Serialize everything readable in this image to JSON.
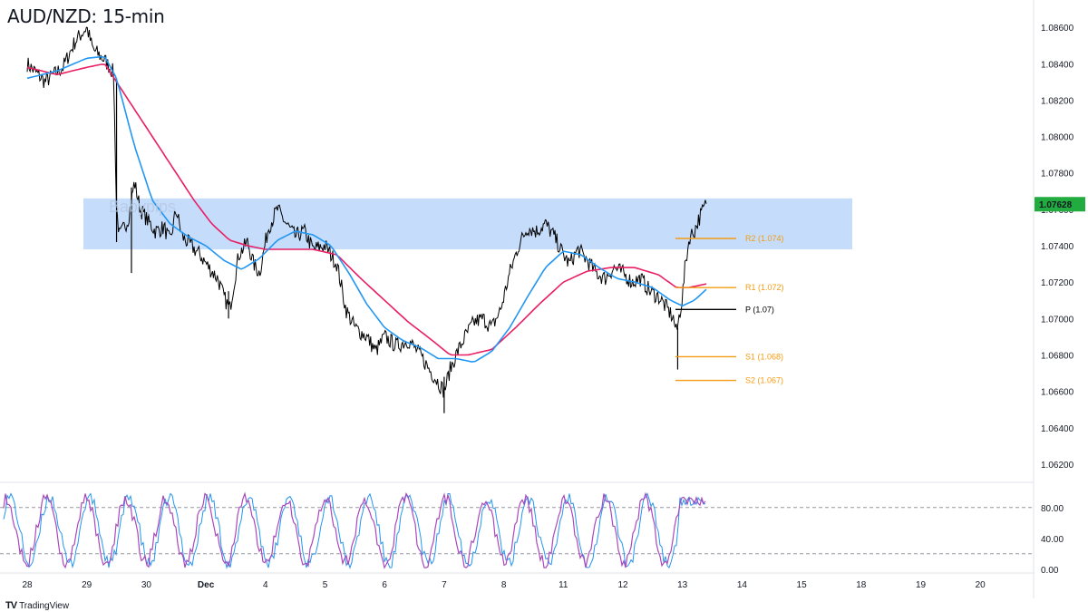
{
  "title": "AUD/NZD: 15-min",
  "brand": {
    "logo": "TV",
    "name": "TradingView"
  },
  "watermark": "Babypips",
  "colors": {
    "price": "#000000",
    "ma_fast": "#2196f3",
    "ma_slow": "#e91e63",
    "zone": "#bbd7fa",
    "pivot_orange": "#f39c12",
    "pivot_black": "#000000",
    "stoch_k": "#2196f3",
    "stoch_d": "#ab47bc",
    "last_price_bg": "#22ab3f"
  },
  "chart_data": [
    {
      "type": "line",
      "name": "main",
      "x_labels": [
        "28",
        "29",
        "30",
        "Dec",
        "4",
        "5",
        "6",
        "7",
        "8",
        "11",
        "12",
        "13",
        "14",
        "15",
        "18",
        "19",
        "20"
      ],
      "ylim": [
        1.061,
        1.0875
      ],
      "y_ticks": [
        "1.08600",
        "1.08400",
        "1.08200",
        "1.08000",
        "1.07800",
        "1.07600",
        "1.07400",
        "1.07200",
        "1.07000",
        "1.06800",
        "1.06600",
        "1.06400",
        "1.06200"
      ],
      "last_price": "1.07628",
      "zone": {
        "top": 1.0766,
        "bottom": 1.0738
      },
      "pivot_levels": [
        {
          "label": "R2 (1.074)",
          "value": 1.0744,
          "color": "#f39c12"
        },
        {
          "label": "R1 (1.072)",
          "value": 1.0717,
          "color": "#f39c12"
        },
        {
          "label": "P (1.07)",
          "value": 1.0705,
          "color": "#000000"
        },
        {
          "label": "S1 (1.068)",
          "value": 1.0679,
          "color": "#f39c12"
        },
        {
          "label": "S2 (1.067)",
          "value": 1.0666,
          "color": "#f39c12"
        }
      ],
      "price_path": [
        [
          0,
          1.084
        ],
        [
          0.3,
          1.083
        ],
        [
          0.6,
          1.0838
        ],
        [
          0.8,
          1.0852
        ],
        [
          1.0,
          1.086
        ],
        [
          1.1,
          1.0848
        ],
        [
          1.3,
          1.0842
        ],
        [
          1.45,
          1.0835
        ],
        [
          1.5,
          1.076
        ],
        [
          1.55,
          1.0745
        ],
        [
          1.7,
          1.0755
        ],
        [
          1.8,
          1.0775
        ],
        [
          1.9,
          1.076
        ],
        [
          2.0,
          1.0755
        ],
        [
          2.15,
          1.0748
        ],
        [
          2.3,
          1.075
        ],
        [
          2.4,
          1.0742
        ],
        [
          2.5,
          1.076
        ],
        [
          2.6,
          1.0745
        ],
        [
          2.75,
          1.074
        ],
        [
          2.9,
          1.0735
        ],
        [
          3.05,
          1.0728
        ],
        [
          3.2,
          1.0722
        ],
        [
          3.3,
          1.0712
        ],
        [
          3.4,
          1.0705
        ],
        [
          3.55,
          1.0735
        ],
        [
          3.7,
          1.0742
        ],
        [
          3.8,
          1.073
        ],
        [
          3.9,
          1.0725
        ],
        [
          4.05,
          1.075
        ],
        [
          4.2,
          1.076
        ],
        [
          4.35,
          1.0752
        ],
        [
          4.5,
          1.0745
        ],
        [
          4.65,
          1.0748
        ],
        [
          4.8,
          1.0738
        ],
        [
          5.0,
          1.074
        ],
        [
          5.1,
          1.0735
        ],
        [
          5.2,
          1.073
        ],
        [
          5.35,
          1.0705
        ],
        [
          5.5,
          1.0695
        ],
        [
          5.7,
          1.069
        ],
        [
          5.85,
          1.0682
        ],
        [
          6.0,
          1.069
        ],
        [
          6.2,
          1.0685
        ],
        [
          6.4,
          1.0688
        ],
        [
          6.6,
          1.068
        ],
        [
          6.75,
          1.0672
        ],
        [
          6.9,
          1.0665
        ],
        [
          7.0,
          1.066
        ],
        [
          7.1,
          1.0672
        ],
        [
          7.2,
          1.068
        ],
        [
          7.35,
          1.069
        ],
        [
          7.5,
          1.0698
        ],
        [
          7.65,
          1.07
        ],
        [
          7.8,
          1.0695
        ],
        [
          7.95,
          1.0705
        ],
        [
          8.1,
          1.0725
        ],
        [
          8.25,
          1.074
        ],
        [
          8.4,
          1.075
        ],
        [
          8.55,
          1.0748
        ],
        [
          8.7,
          1.0752
        ],
        [
          8.85,
          1.0745
        ],
        [
          9.0,
          1.0735
        ],
        [
          9.1,
          1.073
        ],
        [
          9.25,
          1.0738
        ],
        [
          9.4,
          1.0732
        ],
        [
          9.55,
          1.0725
        ],
        [
          9.7,
          1.0722
        ],
        [
          9.85,
          1.0728
        ],
        [
          10.0,
          1.0725
        ],
        [
          10.15,
          1.072
        ],
        [
          10.3,
          1.0722
        ],
        [
          10.45,
          1.0715
        ],
        [
          10.6,
          1.0712
        ],
        [
          10.75,
          1.0705
        ],
        [
          10.85,
          1.07
        ],
        [
          10.9,
          1.0692
        ],
        [
          10.95,
          1.0702
        ],
        [
          11.0,
          1.0712
        ],
        [
          11.05,
          1.073
        ],
        [
          11.12,
          1.0745
        ],
        [
          11.2,
          1.0748
        ],
        [
          11.28,
          1.0755
        ],
        [
          11.35,
          1.076
        ],
        [
          11.4,
          1.0763
        ]
      ],
      "ma_fast_path": [
        [
          0,
          1.0832
        ],
        [
          0.5,
          1.0836
        ],
        [
          1.0,
          1.0843
        ],
        [
          1.3,
          1.0844
        ],
        [
          1.5,
          1.0832
        ],
        [
          1.8,
          1.0795
        ],
        [
          2.1,
          1.0765
        ],
        [
          2.4,
          1.0752
        ],
        [
          2.7,
          1.0745
        ],
        [
          3.0,
          1.074
        ],
        [
          3.3,
          1.0732
        ],
        [
          3.6,
          1.0727
        ],
        [
          3.9,
          1.0733
        ],
        [
          4.2,
          1.0743
        ],
        [
          4.5,
          1.0748
        ],
        [
          4.8,
          1.0746
        ],
        [
          5.1,
          1.074
        ],
        [
          5.4,
          1.0725
        ],
        [
          5.7,
          1.0708
        ],
        [
          6.0,
          1.0695
        ],
        [
          6.3,
          1.0688
        ],
        [
          6.6,
          1.0684
        ],
        [
          6.9,
          1.0678
        ],
        [
          7.2,
          1.0678
        ],
        [
          7.5,
          1.0676
        ],
        [
          7.8,
          1.0682
        ],
        [
          8.1,
          1.0695
        ],
        [
          8.4,
          1.0712
        ],
        [
          8.7,
          1.0728
        ],
        [
          9.0,
          1.0737
        ],
        [
          9.3,
          1.0735
        ],
        [
          9.6,
          1.0728
        ],
        [
          9.9,
          1.0722
        ],
        [
          10.2,
          1.072
        ],
        [
          10.5,
          1.0717
        ],
        [
          10.8,
          1.071
        ],
        [
          11.0,
          1.0707
        ],
        [
          11.2,
          1.071
        ],
        [
          11.4,
          1.0716
        ]
      ],
      "ma_slow_path": [
        [
          0,
          1.0838
        ],
        [
          0.5,
          1.0834
        ],
        [
          1.0,
          1.0838
        ],
        [
          1.3,
          1.084
        ],
        [
          1.6,
          1.0825
        ],
        [
          2.0,
          1.0805
        ],
        [
          2.4,
          1.0785
        ],
        [
          2.8,
          1.0765
        ],
        [
          3.1,
          1.0752
        ],
        [
          3.4,
          1.0743
        ],
        [
          3.7,
          1.074
        ],
        [
          4.0,
          1.0738
        ],
        [
          4.4,
          1.0738
        ],
        [
          4.8,
          1.0738
        ],
        [
          5.2,
          1.0735
        ],
        [
          5.6,
          1.0722
        ],
        [
          6.0,
          1.071
        ],
        [
          6.4,
          1.0698
        ],
        [
          6.8,
          1.0688
        ],
        [
          7.1,
          1.068
        ],
        [
          7.4,
          1.068
        ],
        [
          7.8,
          1.0683
        ],
        [
          8.2,
          1.0695
        ],
        [
          8.6,
          1.0708
        ],
        [
          9.0,
          1.072
        ],
        [
          9.4,
          1.0726
        ],
        [
          9.8,
          1.0728
        ],
        [
          10.2,
          1.0728
        ],
        [
          10.6,
          1.0724
        ],
        [
          10.9,
          1.0717
        ],
        [
          11.1,
          1.0717
        ],
        [
          11.4,
          1.0719
        ]
      ]
    },
    {
      "type": "line",
      "name": "stochastic",
      "ylim": [
        -5,
        108
      ],
      "y_ticks": [
        "80.00",
        "40.00",
        "0.00"
      ],
      "overbought": 80,
      "oversold": 20,
      "period_px": 22,
      "end_x": 11.4
    }
  ]
}
